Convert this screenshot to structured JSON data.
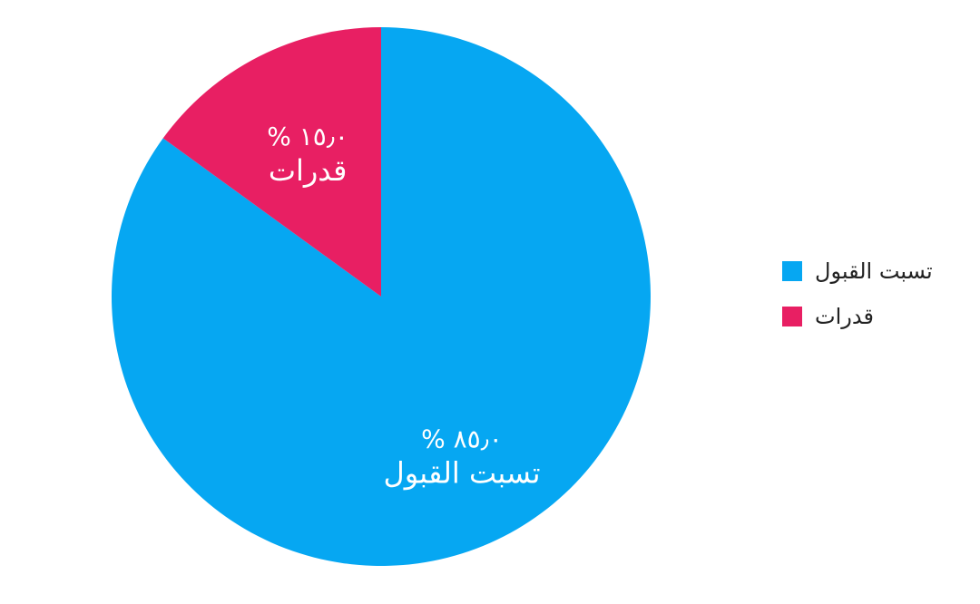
{
  "chart_data": {
    "type": "pie",
    "title": "",
    "series": [
      {
        "name": "تسبت القبول",
        "value": 85.0,
        "display_value": "٨٥٫٠ %",
        "color": "#06A7F2"
      },
      {
        "name": "قدرات",
        "value": 15.0,
        "display_value": "١٥٫٠ %",
        "color": "#E81F63"
      }
    ],
    "start_angle_deg": 0,
    "direction": "clockwise",
    "legend": {
      "placement": "right",
      "items": [
        "تسبت القبول",
        "قدرات"
      ]
    }
  }
}
